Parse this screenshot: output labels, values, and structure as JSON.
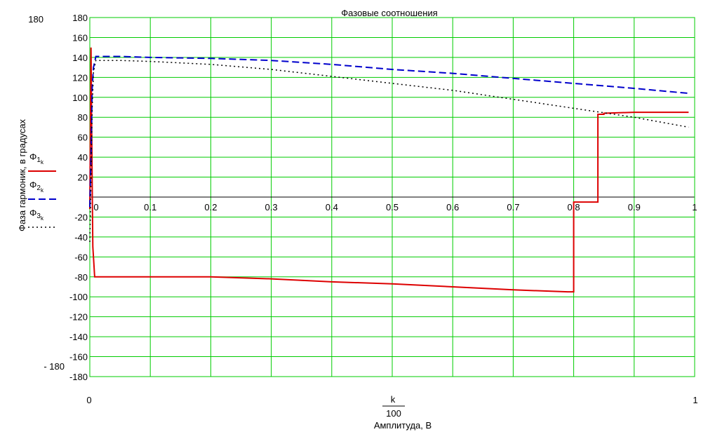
{
  "chart_data": {
    "type": "line",
    "title": "Фазовые соотношения",
    "xlabel": "Амплитуда, В",
    "x_expr_num": "k",
    "x_expr_den": "100",
    "ylabel": "Фаза гармоник, в градусах",
    "xlim": [
      0,
      1
    ],
    "ylim": [
      -180,
      180
    ],
    "y_outer_max": "180",
    "y_outer_min": "- 180",
    "x_outer_min": "0",
    "x_outer_max": "1",
    "grid": true,
    "grid_color": "#00cc00",
    "x_ticks": [
      "0",
      "0.1",
      "0.2",
      "0.3",
      "0.4",
      "0.5",
      "0.6",
      "0.7",
      "0.8",
      "0.9",
      "1"
    ],
    "y_ticks": [
      "180",
      "160",
      "140",
      "120",
      "100",
      "80",
      "60",
      "40",
      "20",
      "",
      "-20",
      "-40",
      "-60",
      "-80",
      "-100",
      "-120",
      "-140",
      "-160",
      "-180"
    ],
    "legend_position": "left",
    "series": [
      {
        "name": "Φ1",
        "sub": "k",
        "color": "#dd0000",
        "dash": "solid",
        "x": [
          0.0,
          0.002,
          0.004,
          0.005,
          0.006,
          0.008,
          0.01,
          0.03,
          0.1,
          0.2,
          0.3,
          0.4,
          0.5,
          0.6,
          0.7,
          0.79,
          0.8,
          0.8,
          0.84,
          0.84,
          0.85,
          0.85,
          0.9,
          0.99
        ],
        "y": [
          -12,
          150,
          10,
          -50,
          -60,
          -80,
          -80,
          -80,
          -80,
          -80,
          -82,
          -85,
          -87,
          -90,
          -93,
          -95,
          -95,
          -5,
          -5,
          83,
          83,
          84,
          85,
          85
        ]
      },
      {
        "name": "Φ2",
        "sub": "k",
        "color": "#0000cc",
        "dash": "dashed",
        "x": [
          0.0,
          0.002,
          0.004,
          0.006,
          0.01,
          0.05,
          0.1,
          0.2,
          0.3,
          0.4,
          0.5,
          0.6,
          0.7,
          0.8,
          0.9,
          0.99
        ],
        "y": [
          -10,
          40,
          110,
          130,
          141,
          141,
          140,
          139,
          137,
          133,
          128,
          124,
          119,
          114,
          109,
          104
        ]
      },
      {
        "name": "Φ3",
        "sub": "k",
        "color": "#000000",
        "dash": "dotted",
        "x": [
          0.0,
          0.002,
          0.004,
          0.006,
          0.01,
          0.05,
          0.1,
          0.2,
          0.3,
          0.4,
          0.5,
          0.6,
          0.7,
          0.8,
          0.9,
          0.99
        ],
        "y": [
          -45,
          20,
          90,
          125,
          137,
          137,
          136,
          133,
          128,
          121,
          114,
          107,
          98,
          89,
          80,
          70
        ]
      }
    ]
  }
}
